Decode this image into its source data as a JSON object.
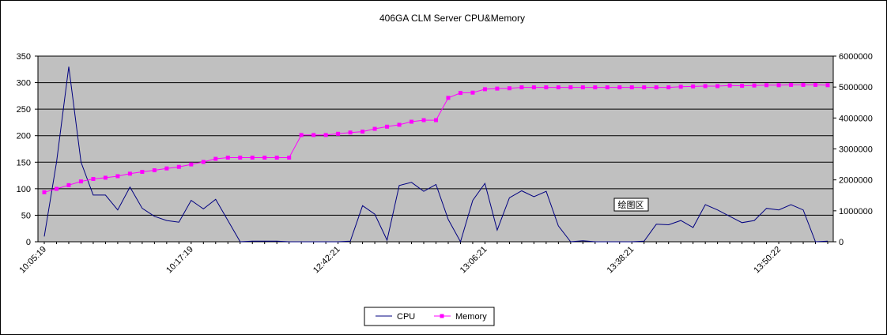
{
  "chart_data": {
    "type": "line",
    "title": "406GA CLM Server CPU&Memory",
    "annotation": "绘图区",
    "x_tick_labels": [
      "10:05:19",
      "10:17:19",
      "12:42:21",
      "13:06:21",
      "13:38:21",
      "13:50:22"
    ],
    "x_tick_indices": [
      0,
      12,
      24,
      36,
      48,
      60
    ],
    "y_left": {
      "ticks": [
        0,
        50,
        100,
        150,
        200,
        250,
        300,
        350
      ],
      "range": [
        0,
        350
      ]
    },
    "y_right": {
      "ticks": [
        0,
        1000000,
        2000000,
        3000000,
        4000000,
        5000000,
        6000000
      ],
      "range": [
        0,
        6000000
      ]
    },
    "grid": "horizontal",
    "legend_position": "bottom-center",
    "series": [
      {
        "name": "CPU",
        "axis": "left",
        "color": "#000080",
        "marker": "none",
        "values": [
          10,
          150,
          330,
          150,
          88,
          88,
          60,
          103,
          63,
          48,
          40,
          37,
          78,
          62,
          80,
          40,
          0,
          1,
          1,
          1,
          0,
          0,
          0,
          0,
          0,
          1,
          68,
          52,
          3,
          106,
          112,
          95,
          108,
          42,
          0,
          78,
          110,
          22,
          83,
          96,
          85,
          95,
          30,
          0,
          2,
          0,
          0,
          0,
          0,
          1,
          33,
          32,
          40,
          27,
          70,
          60,
          48,
          36,
          40,
          63,
          60,
          70,
          60,
          0,
          1
        ]
      },
      {
        "name": "Memory",
        "axis": "right",
        "color": "#ff00ff",
        "marker": "square",
        "values": [
          1600000,
          1710000,
          1830000,
          1950000,
          2030000,
          2070000,
          2120000,
          2200000,
          2260000,
          2310000,
          2370000,
          2420000,
          2500000,
          2580000,
          2680000,
          2720000,
          2720000,
          2720000,
          2720000,
          2720000,
          2720000,
          3450000,
          3450000,
          3450000,
          3490000,
          3530000,
          3560000,
          3650000,
          3720000,
          3780000,
          3880000,
          3930000,
          3930000,
          4650000,
          4810000,
          4820000,
          4930000,
          4950000,
          4960000,
          4990000,
          4990000,
          4990000,
          4990000,
          4990000,
          4990000,
          4990000,
          4990000,
          4990000,
          4990000,
          4990000,
          4990000,
          4990000,
          5010000,
          5020000,
          5030000,
          5030000,
          5050000,
          5040000,
          5050000,
          5060000,
          5060000,
          5070000,
          5070000,
          5070000,
          5060000
        ]
      }
    ]
  }
}
